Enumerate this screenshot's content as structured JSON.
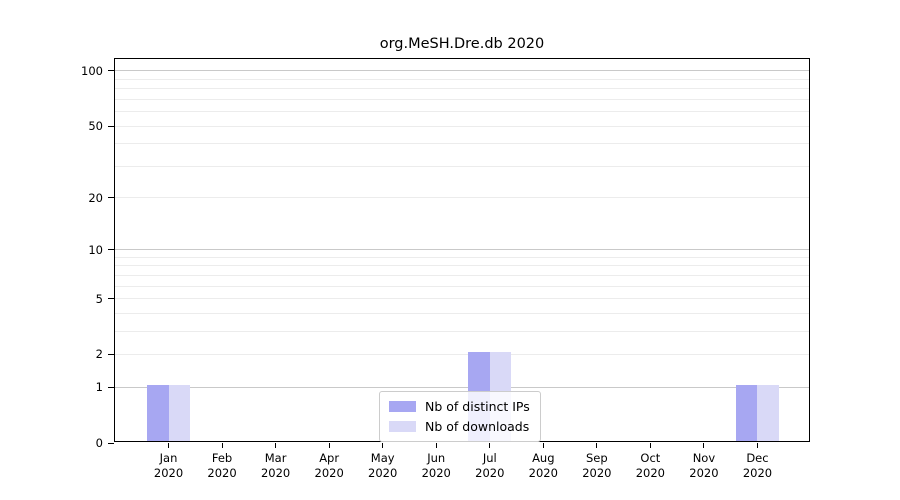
{
  "chart_data": {
    "type": "bar",
    "title": "org.MeSH.Dre.db 2020",
    "categories": [
      "Jan",
      "Feb",
      "Mar",
      "Apr",
      "May",
      "Jun",
      "Jul",
      "Aug",
      "Sep",
      "Oct",
      "Nov",
      "Dec"
    ],
    "category_year": "2020",
    "series": [
      {
        "name": "Nb of distinct IPs",
        "color": "#a7a7f2",
        "values": [
          1,
          0,
          0,
          0,
          0,
          0,
          2,
          0,
          0,
          0,
          0,
          1
        ]
      },
      {
        "name": "Nb of downloads",
        "color": "#d9d9f7",
        "values": [
          1,
          0,
          0,
          0,
          0,
          0,
          2,
          0,
          0,
          0,
          0,
          1
        ]
      }
    ],
    "xlabel": "",
    "ylabel": "",
    "y_scale": "log10(1+x)",
    "y_tick_values": [
      0,
      1,
      2,
      5,
      10,
      20,
      50,
      100
    ],
    "y_major_gridlines": [
      1,
      10,
      100
    ],
    "y_minor_gridlines": [
      2,
      3,
      4,
      5,
      6,
      7,
      8,
      9,
      20,
      30,
      40,
      50,
      60,
      70,
      80,
      90
    ],
    "ylim": [
      0,
      116
    ],
    "grid": true,
    "legend_position": "bottom-center",
    "colors": {
      "major_gridline": "#c9c9c9",
      "minor_gridline": "#ececec",
      "axis": "#000000",
      "legend_border": "#cccccc"
    }
  }
}
